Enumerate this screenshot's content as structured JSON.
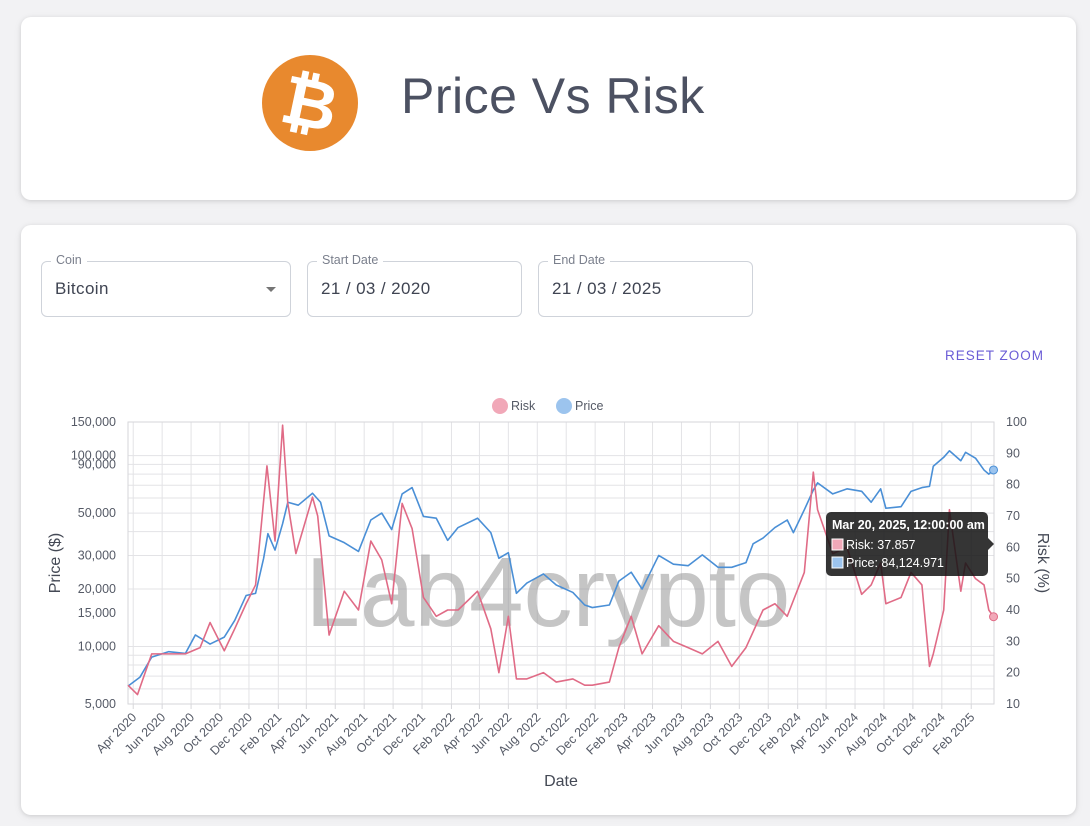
{
  "header": {
    "title": "Price Vs Risk",
    "logo_symbol": "₿",
    "logo_color": "#e8892e"
  },
  "controls": {
    "coin_label": "Coin",
    "coin_value": "Bitcoin",
    "start_label": "Start Date",
    "start_value": "21 / 03 / 2020",
    "end_label": "End Date",
    "end_value": "21 / 03 / 2025",
    "reset_zoom": "RESET ZOOM"
  },
  "colors": {
    "risk": "#e06b86",
    "price": "#4a8fd6",
    "risk_legend": "#f1a8b8",
    "price_legend": "#9cc4ee",
    "accent": "#6a5cd6"
  },
  "watermark": "Lab4crypto",
  "tooltip": {
    "title": "Mar 20, 2025, 12:00:00 am",
    "risk_line": "Risk: 37.857",
    "price_line": "Price: 84,124.971"
  },
  "chart_data": {
    "type": "line",
    "xlabel": "Date",
    "ylabel": "Price ($)",
    "y2label": "Risk (%)",
    "legend": [
      "Risk",
      "Price"
    ],
    "legend_position": "top-center",
    "grid": true,
    "y_scale": "log",
    "ylim": [
      5000,
      150000
    ],
    "y2lim": [
      10,
      100
    ],
    "x_ticks": [
      "Apr 2020",
      "Jun 2020",
      "Aug 2020",
      "Oct 2020",
      "Dec 2020",
      "Feb 2021",
      "Apr 2021",
      "Jun 2021",
      "Aug 2021",
      "Oct 2021",
      "Dec 2021",
      "Feb 2022",
      "Apr 2022",
      "Jun 2022",
      "Aug 2022",
      "Oct 2022",
      "Dec 2022",
      "Feb 2023",
      "Apr 2023",
      "Jun 2023",
      "Aug 2023",
      "Oct 2023",
      "Dec 2023",
      "Feb 2024",
      "Apr 2024",
      "Jun 2024",
      "Aug 2024",
      "Oct 2024",
      "Dec 2024",
      "Feb 2025"
    ],
    "y_ticks": [
      "5,000",
      "10,000",
      "15,000",
      "20,000",
      "30,000",
      "50,000",
      "90,000",
      "100,000",
      "150,000"
    ],
    "y_tick_values": [
      5000,
      10000,
      15000,
      20000,
      30000,
      50000,
      90000,
      100000,
      150000
    ],
    "y2_ticks": [
      "10",
      "20",
      "30",
      "40",
      "50",
      "60",
      "70",
      "80",
      "90",
      "100"
    ],
    "series": [
      {
        "name": "Price",
        "axis": "left",
        "dates": [
          "2020-03-21",
          "2020-04-15",
          "2020-05-10",
          "2020-06-15",
          "2020-07-20",
          "2020-08-10",
          "2020-09-10",
          "2020-10-10",
          "2020-11-01",
          "2020-11-25",
          "2020-12-15",
          "2021-01-01",
          "2021-01-10",
          "2021-01-25",
          "2021-02-10",
          "2021-02-21",
          "2021-03-15",
          "2021-04-14",
          "2021-05-01",
          "2021-05-19",
          "2021-06-20",
          "2021-07-20",
          "2021-08-15",
          "2021-09-07",
          "2021-09-28",
          "2021-10-20",
          "2021-11-10",
          "2021-12-04",
          "2021-12-31",
          "2022-01-24",
          "2022-02-15",
          "2022-03-28",
          "2022-04-25",
          "2022-05-12",
          "2022-06-01",
          "2022-06-18",
          "2022-07-10",
          "2022-08-14",
          "2022-09-10",
          "2022-10-15",
          "2022-11-09",
          "2022-11-25",
          "2022-12-31",
          "2023-01-20",
          "2023-02-15",
          "2023-03-10",
          "2023-04-14",
          "2023-05-15",
          "2023-06-15",
          "2023-07-15",
          "2023-08-17",
          "2023-09-15",
          "2023-10-15",
          "2023-10-30",
          "2023-11-20",
          "2023-12-15",
          "2024-01-10",
          "2024-01-23",
          "2024-02-15",
          "2024-03-05",
          "2024-03-14",
          "2024-04-15",
          "2024-05-15",
          "2024-06-15",
          "2024-07-05",
          "2024-07-25",
          "2024-08-05",
          "2024-09-06",
          "2024-09-27",
          "2024-10-20",
          "2024-11-05",
          "2024-11-13",
          "2024-12-05",
          "2024-12-17",
          "2025-01-10",
          "2025-01-20",
          "2025-02-10",
          "2025-02-28",
          "2025-03-10",
          "2025-03-20"
        ],
        "values": [
          6200,
          6900,
          8800,
          9400,
          9200,
          11500,
          10300,
          11200,
          13700,
          18500,
          19000,
          29000,
          39000,
          32000,
          44000,
          57000,
          55000,
          63500,
          57000,
          38000,
          35000,
          31500,
          46000,
          50000,
          41000,
          63000,
          68000,
          48000,
          47000,
          36000,
          42000,
          47000,
          39500,
          29000,
          31000,
          19000,
          21500,
          24000,
          21000,
          19200,
          16500,
          16000,
          16500,
          22000,
          24500,
          20000,
          30000,
          27000,
          26500,
          30200,
          26000,
          26000,
          27500,
          34500,
          37000,
          42000,
          46000,
          39500,
          52000,
          66000,
          72000,
          63000,
          67000,
          65000,
          57000,
          67000,
          53000,
          54000,
          65000,
          68000,
          69000,
          88000,
          98000,
          106000,
          94000,
          104000,
          97000,
          84000,
          80000,
          84124.971
        ]
      },
      {
        "name": "Risk",
        "axis": "right",
        "dates": [
          "2020-03-21",
          "2020-04-10",
          "2020-05-10",
          "2020-06-15",
          "2020-07-20",
          "2020-08-20",
          "2020-09-10",
          "2020-10-10",
          "2020-11-01",
          "2020-11-25",
          "2020-12-15",
          "2021-01-08",
          "2021-01-25",
          "2021-02-10",
          "2021-02-21",
          "2021-03-10",
          "2021-04-14",
          "2021-04-25",
          "2021-05-19",
          "2021-06-20",
          "2021-07-20",
          "2021-08-15",
          "2021-09-07",
          "2021-09-28",
          "2021-10-20",
          "2021-11-10",
          "2021-12-04",
          "2021-12-31",
          "2022-01-24",
          "2022-02-15",
          "2022-03-28",
          "2022-04-25",
          "2022-05-12",
          "2022-06-01",
          "2022-06-18",
          "2022-07-10",
          "2022-08-14",
          "2022-09-10",
          "2022-10-15",
          "2022-11-09",
          "2022-11-25",
          "2022-12-31",
          "2023-01-20",
          "2023-02-15",
          "2023-03-10",
          "2023-04-14",
          "2023-05-15",
          "2023-06-15",
          "2023-07-15",
          "2023-08-17",
          "2023-09-15",
          "2023-10-15",
          "2023-11-20",
          "2023-12-15",
          "2024-01-10",
          "2024-02-15",
          "2024-03-05",
          "2024-03-14",
          "2024-04-15",
          "2024-05-15",
          "2024-06-15",
          "2024-07-05",
          "2024-07-25",
          "2024-08-05",
          "2024-09-06",
          "2024-09-27",
          "2024-10-20",
          "2024-11-05",
          "2024-11-13",
          "2024-12-05",
          "2024-12-17",
          "2025-01-10",
          "2025-01-20",
          "2025-02-10",
          "2025-02-28",
          "2025-03-10",
          "2025-03-20"
        ],
        "values": [
          16,
          13,
          26,
          26,
          26,
          28,
          36,
          27,
          34,
          42,
          48,
          86,
          62,
          99,
          74,
          58,
          76,
          70,
          32,
          46,
          40,
          62,
          56,
          42,
          74,
          66,
          44,
          38,
          40,
          40,
          46,
          34,
          20,
          38,
          18,
          18,
          20,
          17,
          18,
          16,
          16,
          17,
          28,
          38,
          26,
          35,
          30,
          28,
          26,
          30,
          22,
          28,
          40,
          42,
          38,
          52,
          84,
          72,
          58,
          60,
          45,
          48,
          55,
          42,
          44,
          52,
          48,
          22,
          26,
          40,
          72,
          46,
          55,
          50,
          48,
          40,
          37.857
        ]
      }
    ]
  }
}
